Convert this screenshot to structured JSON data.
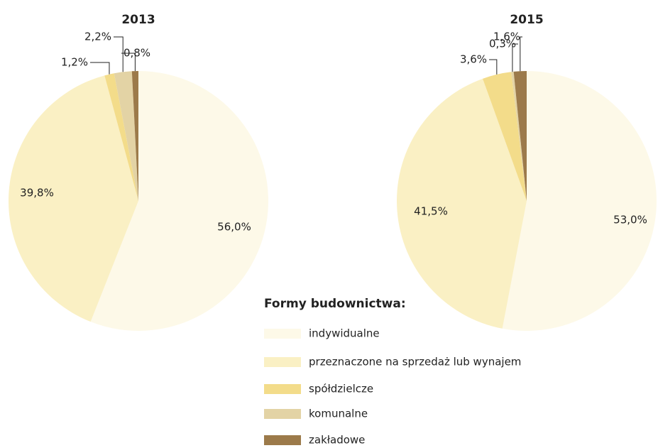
{
  "chart_data": [
    {
      "type": "pie",
      "title": "2013",
      "categories": [
        "indywidualne",
        "przeznaczone na sprzedaż lub wynajem",
        "spółdzielcze",
        "komunalne",
        "zakładowe"
      ],
      "values": [
        56.0,
        39.8,
        1.2,
        2.2,
        0.8
      ],
      "value_labels": [
        "56,0%",
        "39,8%",
        "1,2%",
        "2,2%",
        "0,8%"
      ],
      "colors": [
        "#fdf9e8",
        "#faf0c4",
        "#f3dc8a",
        "#e3d3a5",
        "#9c7a4a"
      ],
      "legend_title": "Formy budownictwa:"
    },
    {
      "type": "pie",
      "title": "2015",
      "categories": [
        "indywidualne",
        "przeznaczone na sprzedaż lub wynajem",
        "spółdzielcze",
        "komunalne",
        "zakładowe"
      ],
      "values": [
        53.0,
        41.5,
        3.6,
        0.3,
        1.6
      ],
      "value_labels": [
        "53,0%",
        "41,5%",
        "3,6%",
        "0,3%",
        "1,6%"
      ],
      "colors": [
        "#fdf9e8",
        "#faf0c4",
        "#f3dc8a",
        "#e3d3a5",
        "#9c7a4a"
      ]
    }
  ]
}
